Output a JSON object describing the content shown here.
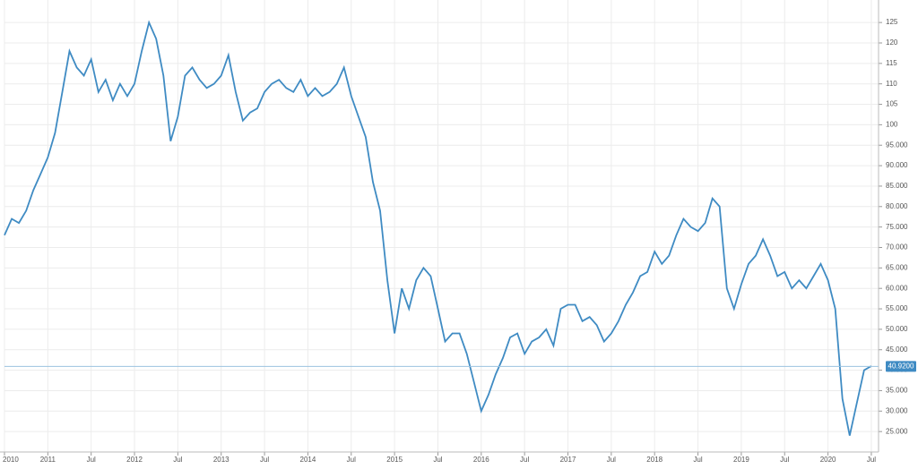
{
  "chart_data": {
    "type": "line",
    "x": [
      "2010-07",
      "2010-08",
      "2010-09",
      "2010-10",
      "2010-11",
      "2010-12",
      "2011-01",
      "2011-02",
      "2011-03",
      "2011-04",
      "2011-05",
      "2011-06",
      "2011-07",
      "2011-08",
      "2011-09",
      "2011-10",
      "2011-11",
      "2011-12",
      "2012-01",
      "2012-02",
      "2012-03",
      "2012-04",
      "2012-05",
      "2012-06",
      "2012-07",
      "2012-08",
      "2012-09",
      "2012-10",
      "2012-11",
      "2012-12",
      "2013-01",
      "2013-02",
      "2013-03",
      "2013-04",
      "2013-05",
      "2013-06",
      "2013-07",
      "2013-08",
      "2013-09",
      "2013-10",
      "2013-11",
      "2013-12",
      "2014-01",
      "2014-02",
      "2014-03",
      "2014-04",
      "2014-05",
      "2014-06",
      "2014-07",
      "2014-08",
      "2014-09",
      "2014-10",
      "2014-11",
      "2014-12",
      "2015-01",
      "2015-02",
      "2015-03",
      "2015-04",
      "2015-05",
      "2015-06",
      "2015-07",
      "2015-08",
      "2015-09",
      "2015-10",
      "2015-11",
      "2015-12",
      "2016-01",
      "2016-02",
      "2016-03",
      "2016-04",
      "2016-05",
      "2016-06",
      "2016-07",
      "2016-08",
      "2016-09",
      "2016-10",
      "2016-11",
      "2016-12",
      "2017-01",
      "2017-02",
      "2017-03",
      "2017-04",
      "2017-05",
      "2017-06",
      "2017-07",
      "2017-08",
      "2017-09",
      "2017-10",
      "2017-11",
      "2017-12",
      "2018-01",
      "2018-02",
      "2018-03",
      "2018-04",
      "2018-05",
      "2018-06",
      "2018-07",
      "2018-08",
      "2018-09",
      "2018-10",
      "2018-11",
      "2018-12",
      "2019-01",
      "2019-02",
      "2019-03",
      "2019-04",
      "2019-05",
      "2019-06",
      "2019-07",
      "2019-08",
      "2019-09",
      "2019-10",
      "2019-11",
      "2019-12",
      "2020-01",
      "2020-02",
      "2020-03",
      "2020-04",
      "2020-05",
      "2020-06",
      "2020-07"
    ],
    "series": [
      {
        "color": "#3f8bc3",
        "values": [
          73,
          77,
          76,
          79,
          84,
          88,
          92,
          98,
          108,
          118,
          114,
          112,
          116,
          108,
          111,
          106,
          110,
          107,
          110,
          118,
          125,
          121,
          112,
          96,
          102,
          112,
          114,
          111,
          109,
          110,
          112,
          117,
          108,
          101,
          103,
          104,
          108,
          110,
          111,
          109,
          108,
          111,
          107,
          109,
          107,
          108,
          110,
          114,
          107,
          102,
          97,
          86,
          79,
          62,
          49,
          60,
          55,
          62,
          65,
          63,
          55,
          47,
          49,
          49,
          44,
          37,
          30,
          34,
          39,
          43,
          48,
          49,
          44,
          47,
          48,
          50,
          46,
          55,
          56,
          56,
          52,
          53,
          51,
          47,
          49,
          52,
          56,
          59,
          63,
          64,
          69,
          66,
          68,
          73,
          77,
          75,
          74,
          76,
          82,
          80,
          60,
          55,
          61,
          66,
          68,
          72,
          68,
          63,
          64,
          60,
          62,
          60,
          63,
          66,
          62,
          55,
          33,
          24,
          32,
          40,
          41
        ]
      }
    ],
    "xlim": [
      "2010-07",
      "2020-08"
    ],
    "xticks": [
      {
        "value": "2010-07",
        "label": "2010"
      },
      {
        "value": "2011-01",
        "label": "2011"
      },
      {
        "value": "2011-07",
        "label": "Jul"
      },
      {
        "value": "2012-01",
        "label": "2012"
      },
      {
        "value": "2012-07",
        "label": "Jul"
      },
      {
        "value": "2013-01",
        "label": "2013"
      },
      {
        "value": "2013-07",
        "label": "Jul"
      },
      {
        "value": "2014-01",
        "label": "2014"
      },
      {
        "value": "2014-07",
        "label": "Jul"
      },
      {
        "value": "2015-01",
        "label": "2015"
      },
      {
        "value": "2015-07",
        "label": "Jul"
      },
      {
        "value": "2016-01",
        "label": "2016"
      },
      {
        "value": "2016-07",
        "label": "Jul"
      },
      {
        "value": "2017-01",
        "label": "2017"
      },
      {
        "value": "2017-07",
        "label": "Jul"
      },
      {
        "value": "2018-01",
        "label": "2018"
      },
      {
        "value": "2018-07",
        "label": "Jul"
      },
      {
        "value": "2019-01",
        "label": "2019"
      },
      {
        "value": "2019-07",
        "label": "Jul"
      },
      {
        "value": "2020-01",
        "label": "2020"
      },
      {
        "value": "2020-07",
        "label": "Jul"
      }
    ],
    "ylim": [
      20,
      130.5
    ],
    "yticks": [
      {
        "value": 25,
        "label": "25.000"
      },
      {
        "value": 30,
        "label": "30.000"
      },
      {
        "value": 35,
        "label": "35.000"
      },
      {
        "value": 40,
        "label": "40.000"
      },
      {
        "value": 45,
        "label": "45.000"
      },
      {
        "value": 50,
        "label": "50.000"
      },
      {
        "value": 55,
        "label": "55.000"
      },
      {
        "value": 60,
        "label": "60.000"
      },
      {
        "value": 65,
        "label": "65.000"
      },
      {
        "value": 70,
        "label": "70.000"
      },
      {
        "value": 75,
        "label": "75.000"
      },
      {
        "value": 80,
        "label": "80.000"
      },
      {
        "value": 85,
        "label": "85.000"
      },
      {
        "value": 90,
        "label": "90.000"
      },
      {
        "value": 95,
        "label": "95.000"
      },
      100,
      105,
      110,
      115,
      120,
      125
    ],
    "grid": true,
    "last_price": {
      "value": 40.92,
      "label": "40.9200"
    }
  }
}
